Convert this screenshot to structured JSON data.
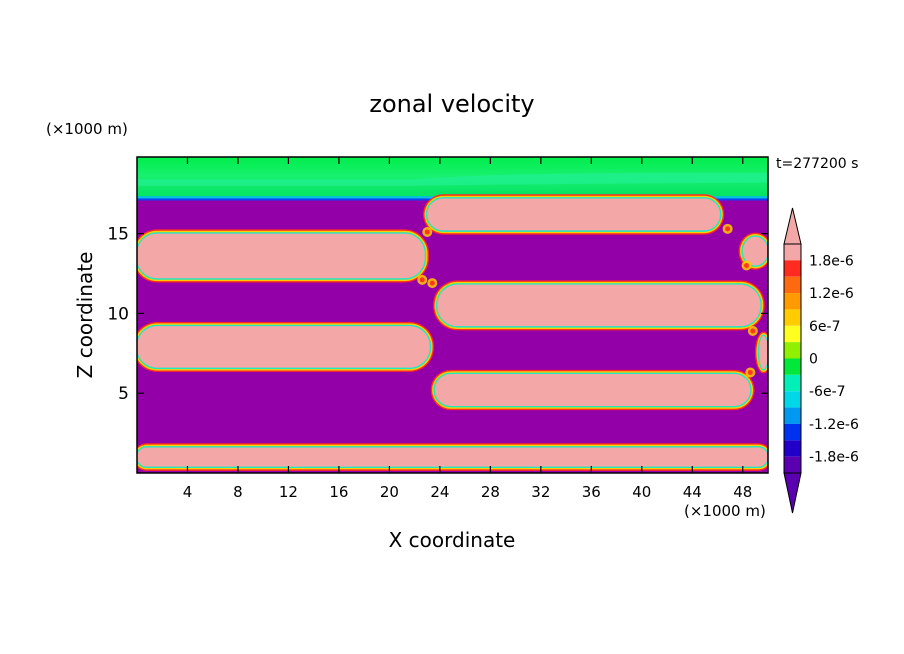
{
  "chart_data": {
    "type": "heatmap",
    "title": "zonal velocity",
    "xlabel": "X coordinate",
    "ylabel": "Z coordinate",
    "x_unit": "(×1000 m)",
    "y_unit": "(×1000 m)",
    "time_label": "t=277200 s",
    "xlim": [
      0,
      50
    ],
    "ylim": [
      0,
      19.8
    ],
    "x_ticks": [
      4,
      8,
      12,
      16,
      20,
      24,
      28,
      32,
      36,
      40,
      44,
      48
    ],
    "y_ticks": [
      5,
      10,
      15
    ],
    "colorbar": {
      "min": -2.1e-06,
      "max": 2.1e-06,
      "labels": [
        "1.8e-6",
        "1.2e-6",
        "6e-7",
        "0",
        "-6e-7",
        "-1.2e-6",
        "-1.8e-6"
      ],
      "label_values": [
        1.8e-06,
        1.2e-06,
        6e-07,
        0,
        -6e-07,
        -1.2e-06,
        -1.8e-06
      ],
      "levels": [
        {
          "from": 1.8e-06,
          "to": 2.1e-06,
          "color": "#f4a7a7"
        },
        {
          "from": 1.5e-06,
          "to": 1.8e-06,
          "color": "#ff2a20"
        },
        {
          "from": 1.2e-06,
          "to": 1.5e-06,
          "color": "#ff6a10"
        },
        {
          "from": 9e-07,
          "to": 1.2e-06,
          "color": "#ff9a00"
        },
        {
          "from": 6e-07,
          "to": 9e-07,
          "color": "#ffcc00"
        },
        {
          "from": 3e-07,
          "to": 6e-07,
          "color": "#ffff20"
        },
        {
          "from": 0,
          "to": 3e-07,
          "color": "#90f000"
        },
        {
          "from": -3e-07,
          "to": 0,
          "color": "#00e83a"
        },
        {
          "from": -6e-07,
          "to": -3e-07,
          "color": "#00f0b8"
        },
        {
          "from": -9e-07,
          "to": -6e-07,
          "color": "#00d8e8"
        },
        {
          "from": -1.2e-06,
          "to": -9e-07,
          "color": "#0098f0"
        },
        {
          "from": -1.5e-06,
          "to": -1.2e-06,
          "color": "#0030f0"
        },
        {
          "from": -1.8e-06,
          "to": -1.5e-06,
          "color": "#2000c8"
        },
        {
          "from": -2.1e-06,
          "to": -1.8e-06,
          "color": "#5a00b0"
        }
      ]
    },
    "field": {
      "background_color": "#9400a8",
      "positive_color": "#f4a7a7",
      "top_layer_colors": [
        "#00ee4a",
        "#10f070",
        "#00e880"
      ],
      "positive_cells": [
        {
          "x0": 0,
          "x1": 50,
          "z0": 0.4,
          "z1": 1.6
        },
        {
          "x0": 0,
          "x1": 23.2,
          "z0": 6.6,
          "z1": 9.2
        },
        {
          "x0": 0,
          "x1": 22.8,
          "z0": 12.2,
          "z1": 15.0
        },
        {
          "x0": 23.6,
          "x1": 48.6,
          "z0": 4.2,
          "z1": 6.2
        },
        {
          "x0": 23.8,
          "x1": 49.4,
          "z0": 9.2,
          "z1": 11.8
        },
        {
          "x0": 23.0,
          "x1": 46.2,
          "z0": 15.2,
          "z1": 17.2
        },
        {
          "x0": 49.3,
          "x1": 50,
          "z0": 6.5,
          "z1": 8.6
        },
        {
          "x0": 48.0,
          "x1": 50,
          "z0": 13.0,
          "z1": 14.8
        }
      ]
    }
  }
}
